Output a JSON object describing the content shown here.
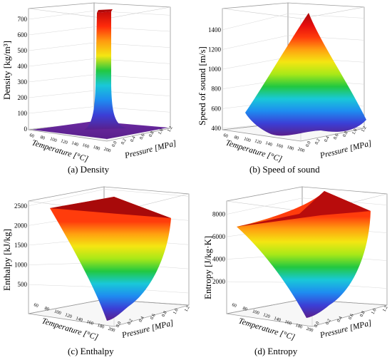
{
  "figure": {
    "colormap": [
      "#5a1f8c",
      "#3b3fd6",
      "#1e8cf0",
      "#19c8d8",
      "#22c840",
      "#a8e818",
      "#f4e612",
      "#ffa010",
      "#ff3c0c",
      "#e60c0c",
      "#a80a0a"
    ],
    "axis_color": "#555555",
    "grid_color": "#d8d8d8"
  },
  "chart_data": [
    {
      "id": "a",
      "type": "surface3d",
      "caption": "(a) Density",
      "zlabel": "Density [kg/m³]",
      "xlabel": "Temperature [°C]",
      "ylabel": "Pressure [MPa]",
      "zticks": [
        "0",
        "100",
        "200",
        "300",
        "400",
        "500",
        "600",
        "700"
      ],
      "xticks": [
        "60",
        "80",
        "100",
        "120",
        "140",
        "160",
        "180",
        "200"
      ],
      "yticks": [
        "0.0",
        "0.2",
        "0.4",
        "0.6",
        "0.8",
        "1.0",
        "1.2"
      ],
      "zlim": [
        0,
        750
      ],
      "description_of_shape": "near-flat surface close to 0 with a sharp spike up to ~700 at low temperature / high pressure corner"
    },
    {
      "id": "b",
      "type": "surface3d",
      "caption": "(b) Speed of sound",
      "zlabel": "Speed of sound [m/s]",
      "xlabel": "Temperature [°C]",
      "ylabel": "Pressure [MPa]",
      "zticks": [
        "400",
        "600",
        "800",
        "1000",
        "1200",
        "1400"
      ],
      "xticks": [
        "60",
        "80",
        "100",
        "120",
        "140",
        "160",
        "180",
        "200"
      ],
      "yticks": [
        "0.0",
        "0.2",
        "0.4",
        "0.6",
        "0.8",
        "1.0",
        "1.2"
      ],
      "zlim": [
        400,
        1500
      ]
    },
    {
      "id": "c",
      "type": "surface3d",
      "caption": "(c) Enthalpy",
      "zlabel": "Enthalpy [kJ/kg]",
      "xlabel": "Temperature [°C]",
      "ylabel": "Pressure [MPa]",
      "zticks": [
        "500",
        "1000",
        "1500",
        "2000",
        "2500"
      ],
      "xticks": [
        "60",
        "80",
        "100",
        "120",
        "140",
        "160",
        "180",
        "200"
      ],
      "yticks": [
        "0.0",
        "0.2",
        "0.4",
        "0.6",
        "0.8",
        "1.0",
        "1.2"
      ],
      "zlim": [
        250,
        2550
      ]
    },
    {
      "id": "d",
      "type": "surface3d",
      "caption": "(d) Entropy",
      "zlabel": "Entropy [J/kg·K]",
      "xlabel": "Temperature [°C]",
      "ylabel": "Pressure [MPa]",
      "zticks": [
        "2000",
        "4000",
        "6000",
        "8000"
      ],
      "xticks": [
        "60",
        "80",
        "100",
        "120",
        "140",
        "160",
        "180",
        "200"
      ],
      "yticks": [
        "0.0",
        "0.2",
        "0.4",
        "0.6",
        "0.8",
        "1.0",
        "1.2"
      ],
      "zlim": [
        800,
        8800
      ]
    }
  ]
}
